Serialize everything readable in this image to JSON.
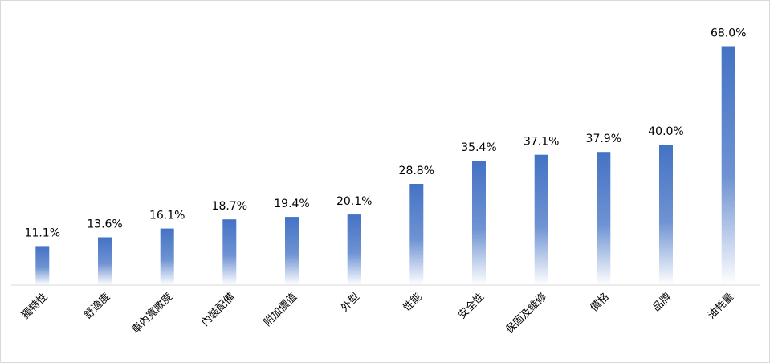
{
  "chart_data": {
    "type": "bar",
    "title": "",
    "xlabel": "",
    "ylabel": "",
    "ylim": [
      0,
      72
    ],
    "grid": false,
    "legend": "none",
    "value_format": "percent",
    "colors": {
      "bar_top": "#4472c4",
      "bar_bottom": "#ffffff",
      "axis": "#d9d9d9"
    },
    "categories": [
      "獨特性",
      "舒適度",
      "車內寬敞度",
      "內裝配備",
      "附加價值",
      "外型",
      "性能",
      "安全性",
      "保固及維修",
      "價格",
      "品牌",
      "油耗量"
    ],
    "values": [
      11.1,
      13.6,
      16.1,
      18.7,
      19.4,
      20.1,
      28.8,
      35.4,
      37.1,
      37.9,
      40.0,
      68.0
    ],
    "value_labels": [
      "11.1%",
      "13.6%",
      "16.1%",
      "18.7%",
      "19.4%",
      "20.1%",
      "28.8%",
      "35.4%",
      "37.1%",
      "37.9%",
      "40.0%",
      "68.0%"
    ]
  }
}
